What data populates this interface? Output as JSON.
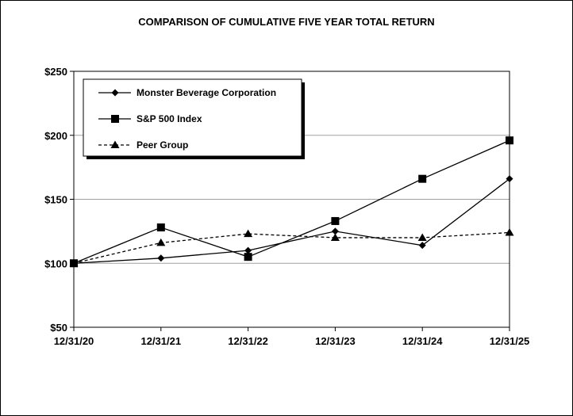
{
  "chart_data": {
    "type": "line",
    "title": "COMPARISON OF CUMULATIVE FIVE YEAR TOTAL RETURN",
    "xlabel": "",
    "ylabel": "",
    "categories": [
      "12/31/20",
      "12/31/21",
      "12/31/22",
      "12/31/23",
      "12/31/24",
      "12/31/25"
    ],
    "ylim": [
      50,
      250
    ],
    "yticks": [
      "$50",
      "$100",
      "$150",
      "$200",
      "$250"
    ],
    "ytick_values": [
      50,
      100,
      150,
      200,
      250
    ],
    "grid": true,
    "legend_position": "top-left",
    "series": [
      {
        "name": "Monster Beverage Corporation",
        "values": [
          100,
          104,
          110,
          125,
          114,
          166
        ],
        "marker": "diamond",
        "line_style": "solid",
        "color": "#000000"
      },
      {
        "name": "S&P 500 Index",
        "values": [
          100,
          128,
          105,
          133,
          166,
          196
        ],
        "marker": "square",
        "line_style": "solid",
        "color": "#000000"
      },
      {
        "name": "Peer Group",
        "values": [
          100,
          116,
          123,
          120,
          120,
          124
        ],
        "marker": "triangle",
        "line_style": "dashed",
        "color": "#000000"
      }
    ]
  }
}
